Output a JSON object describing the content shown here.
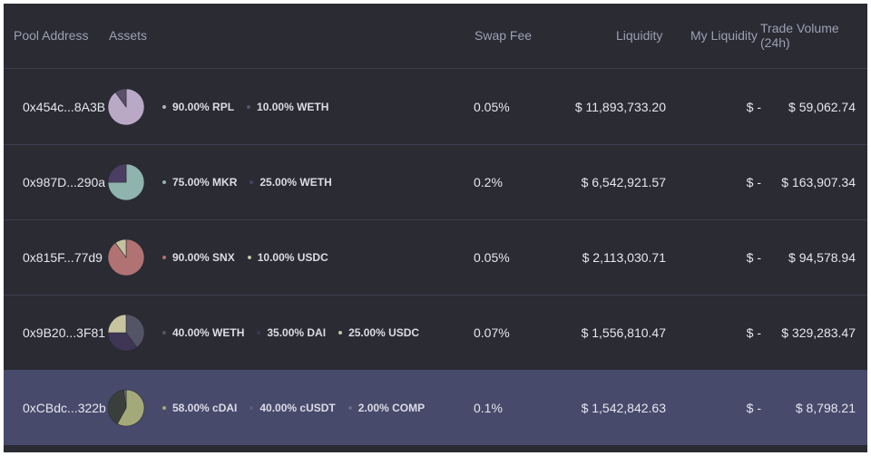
{
  "headers": {
    "pool_address": "Pool Address",
    "assets": "Assets",
    "swap_fee": "Swap Fee",
    "liquidity": "Liquidity",
    "my_liquidity": "My Liquidity",
    "trade_volume": "Trade Volume (24h)"
  },
  "rows": [
    {
      "address": "0x454c...8A3B",
      "assets": [
        {
          "label": "90.00% RPL",
          "weight": 0.9,
          "color": "#b9a9c6",
          "dot": "#b9a9c6"
        },
        {
          "label": "10.00% WETH",
          "weight": 0.1,
          "color": "#5b4f6a",
          "dot": "#5b4f6a"
        }
      ],
      "swap_fee": "0.05%",
      "liquidity": "$ 11,893,733.20",
      "my_liquidity": "$ -",
      "volume": "$ 59,062.74",
      "selected": false
    },
    {
      "address": "0x987D...290a",
      "assets": [
        {
          "label": "75.00% MKR",
          "weight": 0.75,
          "color": "#8fb3ad",
          "dot": "#8fb3ad"
        },
        {
          "label": "25.00% WETH",
          "weight": 0.25,
          "color": "#4b3e63",
          "dot": "#4b3e63"
        }
      ],
      "swap_fee": "0.2%",
      "liquidity": "$ 6,542,921.57",
      "my_liquidity": "$ -",
      "volume": "$ 163,907.34",
      "selected": false
    },
    {
      "address": "0x815F...77d9",
      "assets": [
        {
          "label": "90.00% SNX",
          "weight": 0.9,
          "color": "#b07272",
          "dot": "#b07272"
        },
        {
          "label": "10.00% USDC",
          "weight": 0.1,
          "color": "#c3c3a1",
          "dot": "#c3c3a1"
        }
      ],
      "swap_fee": "0.05%",
      "liquidity": "$ 2,113,030.71",
      "my_liquidity": "$ -",
      "volume": "$ 94,578.94",
      "selected": false
    },
    {
      "address": "0x9B20...3F81",
      "assets": [
        {
          "label": "40.00% WETH",
          "weight": 0.4,
          "color": "#535566",
          "dot": "#535566"
        },
        {
          "label": "35.00% DAI",
          "weight": 0.35,
          "color": "#3f3655",
          "dot": "#3f3655"
        },
        {
          "label": "25.00% USDC",
          "weight": 0.25,
          "color": "#c7c4a0",
          "dot": "#c7c4a0"
        }
      ],
      "swap_fee": "0.07%",
      "liquidity": "$ 1,556,810.47",
      "my_liquidity": "$ -",
      "volume": "$ 329,283.47",
      "selected": false
    },
    {
      "address": "0xCBdc...322b",
      "assets": [
        {
          "label": "58.00% cDAI",
          "weight": 0.58,
          "color": "#a4a97a",
          "dot": "#a4a97a"
        },
        {
          "label": "40.00% cUSDT",
          "weight": 0.4,
          "color": "#3a3f3b",
          "dot": "#5b5e6e"
        },
        {
          "label": "2.00% COMP",
          "weight": 0.02,
          "color": "#6a6d7e",
          "dot": "#6a6d7e"
        }
      ],
      "swap_fee": "0.1%",
      "liquidity": "$ 1,542,842.63",
      "my_liquidity": "$ -",
      "volume": "$ 8,798.21",
      "selected": true
    }
  ]
}
